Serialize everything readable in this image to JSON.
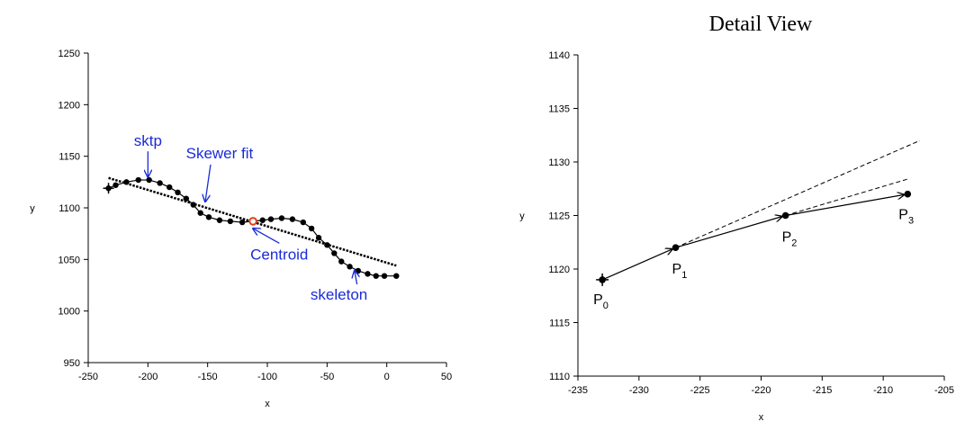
{
  "colors": {
    "annotation": "#1a2bd8",
    "centroid": "#e0401a",
    "ink": "#000000"
  },
  "chart_data": [
    {
      "type": "line",
      "title": "",
      "xlabel": "x",
      "ylabel": "y",
      "xlim": [
        -250,
        50
      ],
      "ylim": [
        950,
        1250
      ],
      "xticks": [
        -250,
        -200,
        -150,
        -100,
        -50,
        0,
        50
      ],
      "yticks": [
        950,
        1000,
        1050,
        1100,
        1150,
        1200,
        1250
      ],
      "grid": false,
      "series": [
        {
          "role": "skeleton",
          "style": "solid-dots",
          "x": [
            -233,
            -227,
            -218,
            -208,
            -199,
            -190,
            -182,
            -175,
            -168,
            -162,
            -156,
            -149,
            -140,
            -131,
            -121,
            -112,
            -104,
            -97,
            -88,
            -79,
            -70,
            -63,
            -57,
            -50,
            -44,
            -38,
            -31,
            -24,
            -16,
            -9,
            -2,
            8
          ],
          "y": [
            1119,
            1122,
            1125,
            1127,
            1127,
            1124,
            1120,
            1115,
            1109,
            1103,
            1095,
            1091,
            1088,
            1087,
            1086,
            1087,
            1088,
            1089,
            1090,
            1089,
            1086,
            1080,
            1071,
            1064,
            1056,
            1048,
            1043,
            1039,
            1036,
            1034,
            1034,
            1034
          ]
        },
        {
          "role": "skewer-fit",
          "style": "dashed",
          "x": [
            -233,
            8
          ],
          "y": [
            1129,
            1044
          ]
        }
      ],
      "centroid": {
        "x": -112,
        "y": 1087
      },
      "start_marker": {
        "x": -233,
        "y": 1119
      },
      "annotations": [
        {
          "text": "sktp",
          "x": -200,
          "y": 1160,
          "target": [
            -200,
            1130
          ]
        },
        {
          "text": "Skewer fit",
          "x": -140,
          "y": 1148,
          "target": [
            -152,
            1106
          ]
        },
        {
          "text": "Centroid",
          "x": -90,
          "y": 1050,
          "target": [
            -112,
            1080
          ]
        },
        {
          "text": "skeleton",
          "x": -40,
          "y": 1011,
          "target": [
            -27,
            1039
          ]
        }
      ]
    },
    {
      "type": "line",
      "title": "Detail View",
      "xlabel": "x",
      "ylabel": "y",
      "xlim": [
        -235,
        -205
      ],
      "ylim": [
        1110,
        1140
      ],
      "xticks": [
        -235,
        -230,
        -225,
        -220,
        -215,
        -210,
        -205
      ],
      "yticks": [
        1110,
        1115,
        1120,
        1125,
        1130,
        1135,
        1140
      ],
      "grid": false,
      "points": [
        {
          "label": "P",
          "sub": "0",
          "x": -233,
          "y": 1119
        },
        {
          "label": "P",
          "sub": "1",
          "x": -227,
          "y": 1122
        },
        {
          "label": "P",
          "sub": "2",
          "x": -218,
          "y": 1125
        },
        {
          "label": "P",
          "sub": "3",
          "x": -208,
          "y": 1127
        }
      ],
      "dashed_extensions": [
        {
          "x": [
            -227,
            -207
          ],
          "y": [
            1122,
            1132
          ]
        },
        {
          "x": [
            -218,
            -208
          ],
          "y": [
            1125,
            1128.4
          ]
        }
      ]
    }
  ]
}
